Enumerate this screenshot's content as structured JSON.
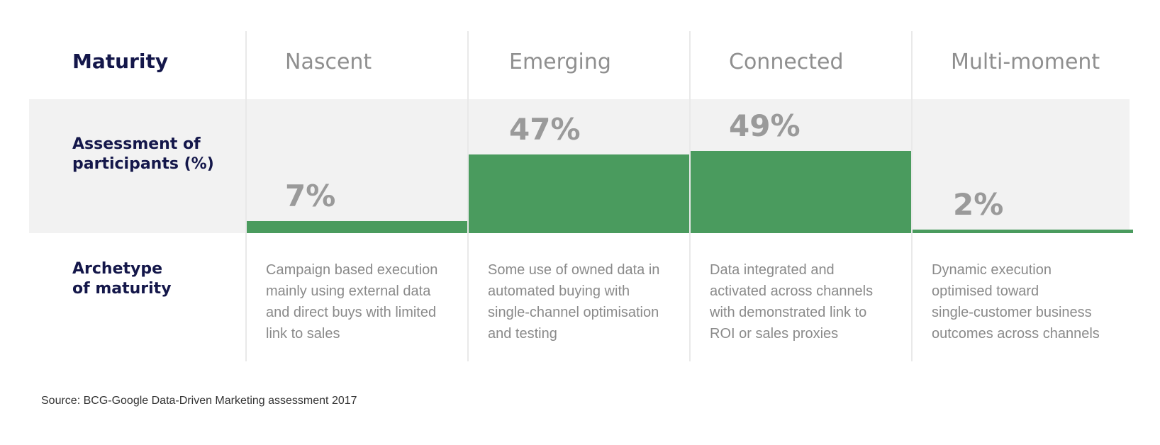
{
  "row_labels": {
    "maturity": "Maturity",
    "assessment": "Assessment of\nparticipants (%)",
    "archetype": "Archetype\nof maturity"
  },
  "chart_data": {
    "type": "bar",
    "categories": [
      "Nascent",
      "Emerging",
      "Connected",
      "Multi-moment"
    ],
    "values": [
      7,
      47,
      49,
      2
    ],
    "value_labels": [
      "7%",
      "47%",
      "49%",
      "2%"
    ],
    "ylim": [
      0,
      100
    ],
    "colors": {
      "bar": "#4a9b5e",
      "band": "#f2f2f2"
    }
  },
  "descriptions": [
    "Campaign based execution\nmainly using external data\nand direct buys with limited\nlink to sales",
    "Some use of owned data in\nautomated buying with\nsingle-channel optimisation\nand testing",
    "Data integrated and\nactivated across channels\nwith demonstrated link to\nROI or sales proxies",
    "Dynamic execution\noptimised toward\nsingle-customer business\noutcomes across channels"
  ],
  "source": "Source: BCG-Google Data-Driven Marketing assessment 2017"
}
